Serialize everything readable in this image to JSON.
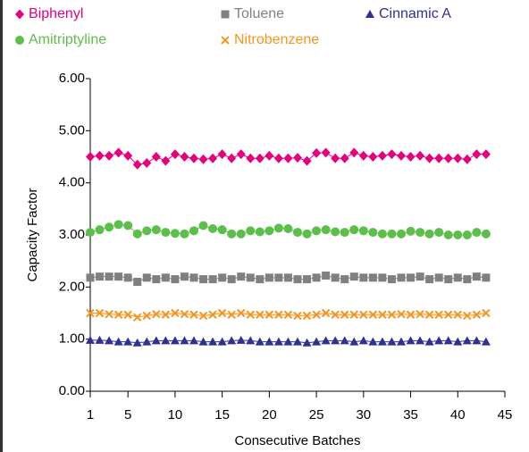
{
  "chart_data": {
    "type": "line",
    "x_label": "Consecutive Batches",
    "y_label": "Capacity Factor",
    "x": [
      1,
      2,
      3,
      4,
      5,
      6,
      7,
      8,
      9,
      10,
      11,
      12,
      13,
      14,
      15,
      16,
      17,
      18,
      19,
      20,
      21,
      22,
      23,
      24,
      25,
      26,
      27,
      28,
      29,
      30,
      31,
      32,
      33,
      34,
      35,
      36,
      37,
      38,
      39,
      40,
      41,
      42,
      43
    ],
    "xlim": [
      1,
      45
    ],
    "xticks": [
      1,
      5,
      10,
      15,
      20,
      25,
      30,
      35,
      40,
      45
    ],
    "ylim": [
      0,
      6
    ],
    "yticks": [
      {
        "value": 0,
        "label": "0.00"
      },
      {
        "value": 1,
        "label": "1.00"
      },
      {
        "value": 2,
        "label": "2.00"
      },
      {
        "value": 3,
        "label": "3.00"
      },
      {
        "value": 4,
        "label": "4.00"
      },
      {
        "value": 5,
        "label": "5.00"
      },
      {
        "value": 6,
        "label": "6.00"
      }
    ],
    "legend": "top",
    "series": [
      {
        "name": "Biphenyl",
        "color": "#e6007e",
        "marker": "diamond",
        "values": [
          4.5,
          4.52,
          4.52,
          4.58,
          4.52,
          4.35,
          4.38,
          4.5,
          4.42,
          4.55,
          4.5,
          4.47,
          4.45,
          4.47,
          4.55,
          4.47,
          4.55,
          4.47,
          4.47,
          4.52,
          4.47,
          4.47,
          4.48,
          4.42,
          4.57,
          4.58,
          4.47,
          4.47,
          4.58,
          4.52,
          4.5,
          4.52,
          4.55,
          4.52,
          4.5,
          4.52,
          4.47,
          4.47,
          4.47,
          4.47,
          4.45,
          4.55,
          4.55
        ]
      },
      {
        "name": "Toluene",
        "color": "#808080",
        "marker": "square",
        "values": [
          2.18,
          2.2,
          2.2,
          2.2,
          2.18,
          2.1,
          2.18,
          2.15,
          2.18,
          2.15,
          2.2,
          2.18,
          2.15,
          2.15,
          2.18,
          2.15,
          2.2,
          2.18,
          2.15,
          2.18,
          2.18,
          2.18,
          2.15,
          2.15,
          2.18,
          2.22,
          2.18,
          2.15,
          2.2,
          2.18,
          2.18,
          2.18,
          2.15,
          2.18,
          2.18,
          2.2,
          2.15,
          2.18,
          2.15,
          2.18,
          2.15,
          2.2,
          2.18
        ]
      },
      {
        "name": "Cinnamic A",
        "color": "#2e3192",
        "marker": "triangle",
        "values": [
          0.98,
          0.98,
          0.97,
          0.95,
          0.95,
          0.93,
          0.95,
          0.97,
          0.97,
          0.97,
          0.97,
          0.97,
          0.95,
          0.95,
          0.95,
          0.97,
          0.98,
          0.97,
          0.95,
          0.95,
          0.95,
          0.95,
          0.95,
          0.93,
          0.95,
          0.97,
          0.97,
          0.97,
          0.95,
          0.97,
          0.95,
          0.95,
          0.95,
          0.95,
          0.97,
          0.97,
          0.95,
          0.97,
          0.97,
          0.95,
          0.97,
          0.97,
          0.95
        ]
      },
      {
        "name": "Amitriptyline",
        "color": "#5cbf4a",
        "marker": "circle",
        "values": [
          3.05,
          3.1,
          3.15,
          3.2,
          3.18,
          3.02,
          3.08,
          3.1,
          3.05,
          3.03,
          3.02,
          3.08,
          3.18,
          3.12,
          3.1,
          3.02,
          3.02,
          3.08,
          3.06,
          3.08,
          3.13,
          3.12,
          3.05,
          3.02,
          3.08,
          3.1,
          3.06,
          3.05,
          3.1,
          3.08,
          3.05,
          3.02,
          3.02,
          3.02,
          3.07,
          3.05,
          3.02,
          3.05,
          3.0,
          3.0,
          3.0,
          3.05,
          3.02
        ]
      },
      {
        "name": "Nitrobenzene",
        "color": "#f7941d",
        "marker": "cross",
        "values": [
          1.5,
          1.5,
          1.48,
          1.47,
          1.47,
          1.42,
          1.45,
          1.48,
          1.47,
          1.5,
          1.48,
          1.47,
          1.45,
          1.47,
          1.5,
          1.47,
          1.5,
          1.47,
          1.47,
          1.47,
          1.47,
          1.47,
          1.45,
          1.45,
          1.47,
          1.5,
          1.47,
          1.47,
          1.47,
          1.47,
          1.47,
          1.47,
          1.47,
          1.48,
          1.47,
          1.48,
          1.47,
          1.47,
          1.47,
          1.47,
          1.45,
          1.47,
          1.5
        ]
      }
    ]
  }
}
